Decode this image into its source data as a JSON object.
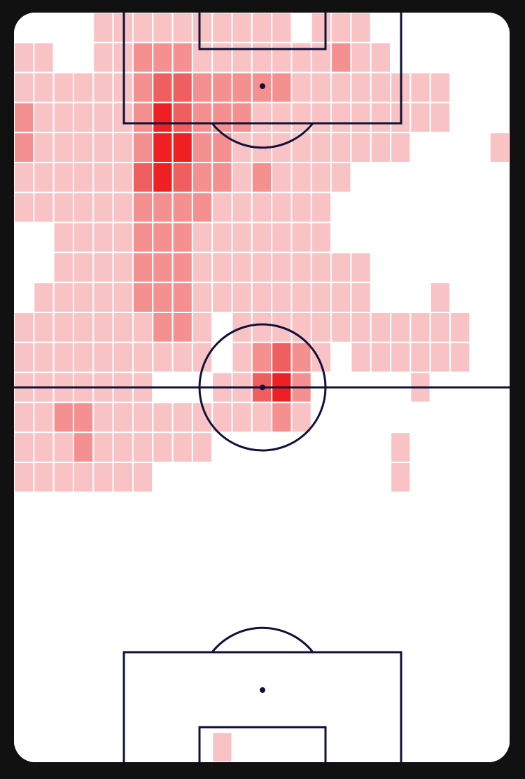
{
  "chart_data": {
    "type": "heatmap",
    "colors": [
      "#f9c3c5",
      "#f4908f",
      "#ef5f5f",
      "#ee2024"
    ],
    "values": [
      [
        0,
        0,
        0,
        0,
        1,
        1,
        1,
        1,
        1,
        1,
        1,
        1,
        1,
        1,
        0,
        1,
        1,
        1,
        0,
        0,
        0,
        0,
        0,
        0,
        0
      ],
      [
        1,
        1,
        0,
        0,
        1,
        1,
        2,
        2,
        2,
        1,
        1,
        1,
        1,
        1,
        1,
        1,
        2,
        1,
        1,
        0,
        0,
        0,
        0,
        0,
        0
      ],
      [
        1,
        1,
        1,
        1,
        1,
        1,
        2,
        3,
        3,
        2,
        2,
        2,
        2,
        2,
        1,
        1,
        1,
        1,
        1,
        1,
        1,
        1,
        0,
        0,
        0
      ],
      [
        2,
        1,
        1,
        1,
        1,
        1,
        2,
        4,
        3,
        2,
        2,
        2,
        1,
        1,
        1,
        1,
        1,
        1,
        1,
        1,
        1,
        1,
        0,
        0,
        0
      ],
      [
        2,
        1,
        1,
        1,
        1,
        1,
        2,
        4,
        4,
        2,
        2,
        1,
        1,
        1,
        1,
        1,
        1,
        1,
        1,
        1,
        0,
        0,
        0,
        0,
        1
      ],
      [
        1,
        1,
        1,
        1,
        1,
        1,
        3,
        4,
        3,
        2,
        2,
        1,
        2,
        1,
        1,
        1,
        1,
        0,
        0,
        0,
        0,
        0,
        0,
        0,
        0
      ],
      [
        1,
        1,
        1,
        1,
        1,
        1,
        2,
        2,
        2,
        2,
        1,
        1,
        1,
        1,
        1,
        1,
        0,
        0,
        0,
        0,
        0,
        0,
        0,
        0,
        0
      ],
      [
        0,
        0,
        1,
        1,
        1,
        1,
        2,
        2,
        2,
        1,
        1,
        1,
        1,
        1,
        1,
        1,
        0,
        0,
        0,
        0,
        0,
        0,
        0,
        0,
        0
      ],
      [
        0,
        0,
        1,
        1,
        1,
        1,
        2,
        2,
        2,
        1,
        1,
        1,
        1,
        1,
        1,
        1,
        1,
        1,
        0,
        0,
        0,
        0,
        0,
        0,
        0
      ],
      [
        0,
        1,
        1,
        1,
        1,
        1,
        2,
        2,
        2,
        1,
        1,
        1,
        1,
        1,
        1,
        1,
        1,
        1,
        0,
        0,
        0,
        1,
        0,
        0,
        0
      ],
      [
        1,
        1,
        1,
        1,
        1,
        1,
        1,
        2,
        2,
        1,
        0,
        1,
        1,
        1,
        1,
        1,
        1,
        1,
        1,
        1,
        1,
        1,
        1,
        0,
        0
      ],
      [
        1,
        1,
        1,
        1,
        1,
        1,
        1,
        1,
        1,
        1,
        0,
        1,
        2,
        3,
        2,
        1,
        0,
        1,
        1,
        1,
        1,
        1,
        1,
        0,
        0
      ],
      [
        1,
        1,
        1,
        1,
        1,
        1,
        1,
        0,
        0,
        0,
        1,
        1,
        3,
        4,
        2,
        0,
        0,
        0,
        0,
        0,
        1,
        0,
        0,
        0,
        0
      ],
      [
        1,
        1,
        2,
        2,
        1,
        1,
        1,
        1,
        1,
        1,
        1,
        1,
        1,
        2,
        1,
        0,
        0,
        0,
        0,
        0,
        0,
        0,
        0,
        0,
        0
      ],
      [
        1,
        1,
        1,
        2,
        1,
        1,
        1,
        1,
        1,
        1,
        0,
        0,
        0,
        0,
        0,
        0,
        0,
        0,
        0,
        1,
        0,
        0,
        0,
        0,
        0
      ],
      [
        1,
        1,
        1,
        1,
        1,
        1,
        1,
        0,
        0,
        0,
        0,
        0,
        0,
        0,
        0,
        0,
        0,
        0,
        0,
        1,
        0,
        0,
        0,
        0,
        0
      ],
      [
        0,
        0,
        0,
        0,
        0,
        0,
        0,
        0,
        0,
        0,
        0,
        0,
        0,
        0,
        0,
        0,
        0,
        0,
        0,
        0,
        0,
        0,
        0,
        0,
        0
      ],
      [
        0,
        0,
        0,
        0,
        0,
        0,
        0,
        0,
        0,
        0,
        0,
        0,
        0,
        0,
        0,
        0,
        0,
        0,
        0,
        0,
        0,
        0,
        0,
        0,
        0
      ],
      [
        0,
        0,
        0,
        0,
        0,
        0,
        0,
        0,
        0,
        0,
        0,
        0,
        0,
        0,
        0,
        0,
        0,
        0,
        0,
        0,
        0,
        0,
        0,
        0,
        0
      ],
      [
        0,
        0,
        0,
        0,
        0,
        0,
        0,
        0,
        0,
        0,
        0,
        0,
        0,
        0,
        0,
        0,
        0,
        0,
        0,
        0,
        0,
        0,
        0,
        0,
        0
      ],
      [
        0,
        0,
        0,
        0,
        0,
        0,
        0,
        0,
        0,
        0,
        0,
        0,
        0,
        0,
        0,
        0,
        0,
        0,
        0,
        0,
        0,
        0,
        0,
        0,
        0
      ],
      [
        0,
        0,
        0,
        0,
        0,
        0,
        0,
        0,
        0,
        0,
        0,
        0,
        0,
        0,
        0,
        0,
        0,
        0,
        0,
        0,
        0,
        0,
        0,
        0,
        0
      ],
      [
        0,
        0,
        0,
        0,
        0,
        0,
        0,
        0,
        0,
        0,
        0,
        0,
        0,
        0,
        0,
        0,
        0,
        0,
        0,
        0,
        0,
        0,
        0,
        0,
        0
      ],
      [
        0,
        0,
        0,
        0,
        0,
        0,
        0,
        0,
        0,
        0,
        0,
        0,
        0,
        0,
        0,
        0,
        0,
        0,
        0,
        0,
        0,
        0,
        0,
        0,
        0
      ],
      [
        0,
        0,
        0,
        0,
        0,
        0,
        0,
        0,
        0,
        0,
        1,
        0,
        0,
        0,
        0,
        0,
        0,
        0,
        0,
        0,
        0,
        0,
        0,
        0,
        0
      ]
    ]
  }
}
